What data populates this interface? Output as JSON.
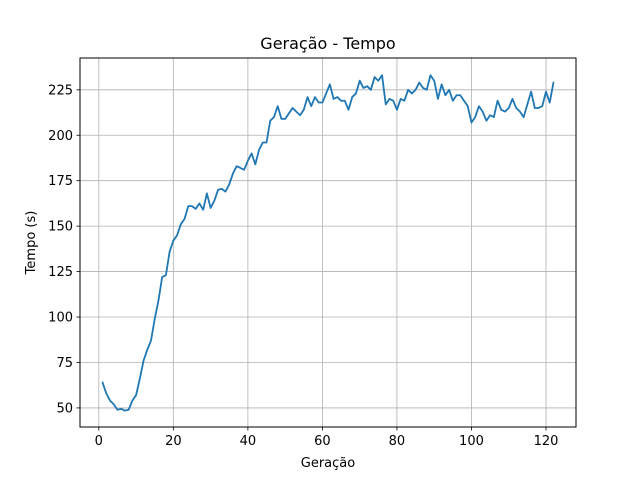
{
  "colors": {
    "series": "#1f77b4",
    "grid": "#b0b0b0",
    "axes": "#000000"
  },
  "chart_data": {
    "type": "line",
    "title": "Geração - Tempo",
    "xlabel": "Geração",
    "ylabel": "Tempo (s)",
    "xlim": [
      -5.05,
      128.05
    ],
    "ylim": [
      39.5,
      242.5
    ],
    "grid": true,
    "x_ticks": [
      0,
      20,
      40,
      60,
      80,
      100,
      120
    ],
    "x_tick_labels": [
      "0",
      "20",
      "40",
      "60",
      "80",
      "100",
      "120"
    ],
    "y_ticks": [
      50,
      75,
      100,
      125,
      150,
      175,
      200,
      225
    ],
    "y_tick_labels": [
      "50",
      "75",
      "100",
      "125",
      "150",
      "175",
      "200",
      "225"
    ],
    "series": [
      {
        "x": [
          1,
          2,
          3,
          4,
          5,
          6,
          7,
          8,
          9,
          10,
          11,
          12,
          13,
          14,
          15,
          16,
          17,
          18,
          19,
          20,
          21,
          22,
          23,
          24,
          25,
          26,
          27,
          28,
          29,
          30,
          31,
          32,
          33,
          34,
          35,
          36,
          37,
          38,
          39,
          40,
          41,
          42,
          43,
          44,
          45,
          46,
          47,
          48,
          49,
          50,
          51,
          52,
          53,
          54,
          55,
          56,
          57,
          58,
          59,
          60,
          61,
          62,
          63,
          64,
          65,
          66,
          67,
          68,
          69,
          70,
          71,
          72,
          73,
          74,
          75,
          76,
          77,
          78,
          79,
          80,
          81,
          82,
          83,
          84,
          85,
          86,
          87,
          88,
          89,
          90,
          91,
          92,
          93,
          94,
          95,
          96,
          97,
          98,
          99,
          100,
          101,
          102,
          103,
          104,
          105,
          106,
          107,
          108,
          109,
          110,
          111,
          112,
          113,
          114,
          115,
          116,
          117,
          118,
          119,
          120,
          121,
          122
        ],
        "values": [
          64,
          58,
          54,
          52,
          49,
          49.5,
          48.5,
          49,
          54,
          57,
          66,
          76,
          82,
          87,
          99,
          109,
          122,
          123,
          136,
          142,
          145,
          151,
          154,
          161,
          161,
          159.5,
          162.5,
          159,
          168,
          160,
          164,
          170,
          170.5,
          169,
          173,
          179,
          183,
          182,
          181,
          186,
          190,
          184,
          192,
          196,
          196,
          208,
          210,
          216,
          209,
          209,
          212,
          215,
          213,
          211,
          214,
          221,
          216,
          221,
          218,
          218,
          223,
          228,
          220,
          221,
          219,
          219,
          214,
          221,
          223,
          230,
          226,
          227,
          225,
          232,
          230,
          233,
          217,
          220,
          219,
          214,
          220,
          219,
          225,
          223,
          225,
          229,
          226,
          225,
          233,
          230,
          220,
          228,
          222,
          225,
          219,
          222,
          222,
          219,
          216,
          207,
          210,
          216,
          213,
          208,
          211,
          210,
          219,
          214,
          213,
          215,
          220,
          215,
          213,
          210,
          217,
          224,
          215,
          215,
          216,
          224,
          218,
          229
        ]
      }
    ]
  }
}
